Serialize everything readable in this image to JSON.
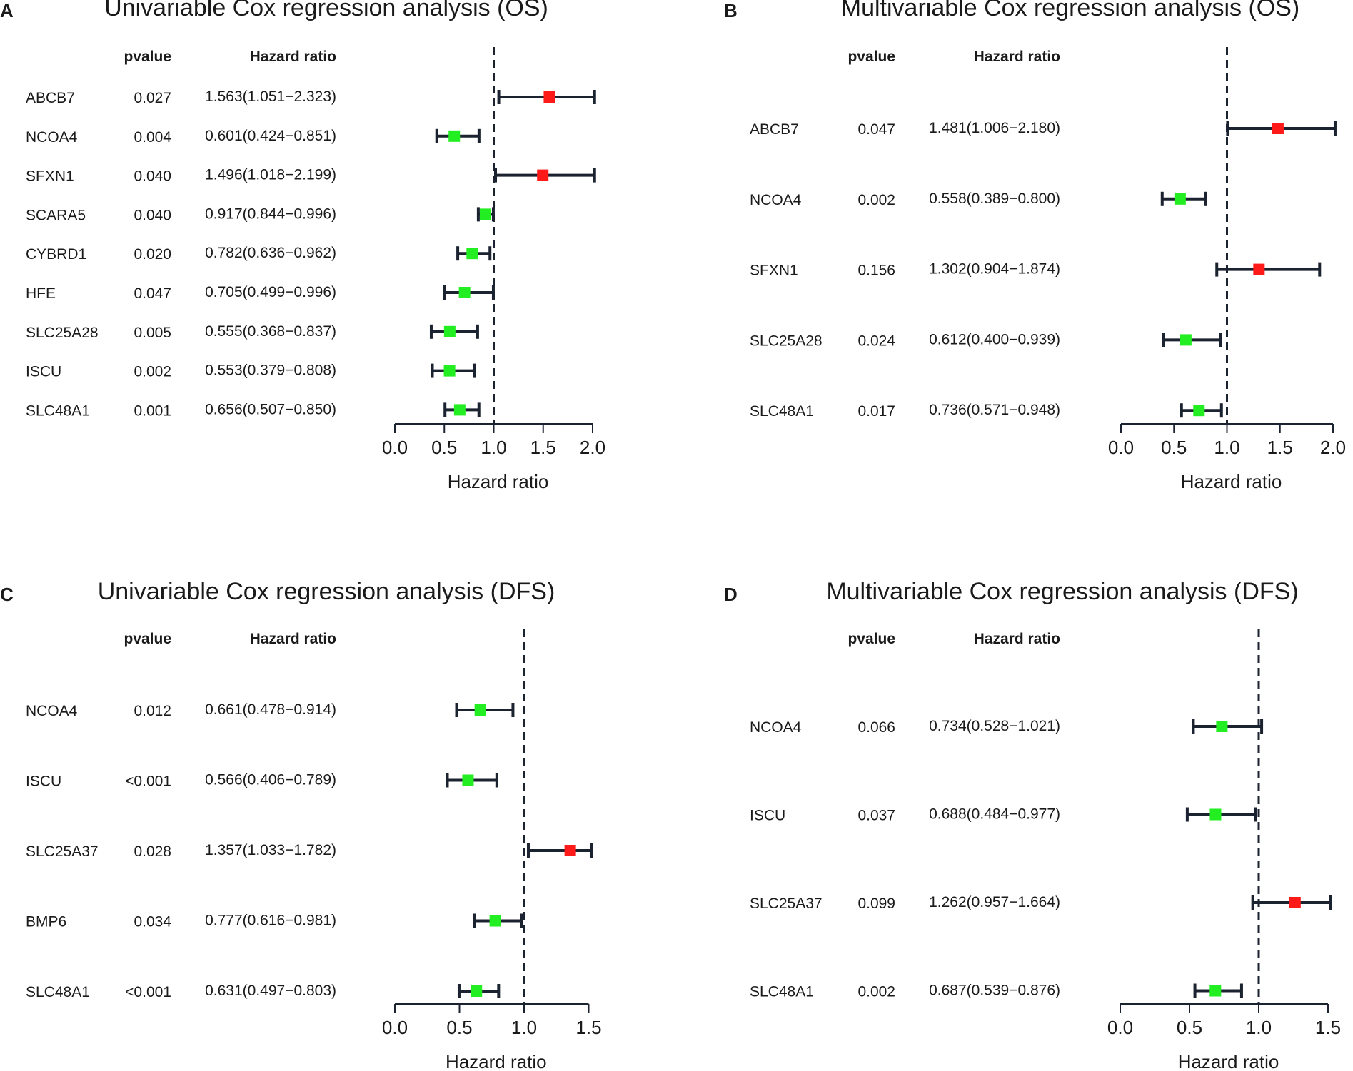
{
  "colors": {
    "up": "#ff1a1a",
    "down": "#22ee22",
    "line": "#1c2330",
    "text": "#1a1a1a"
  },
  "chart_data": [
    {
      "type": "forest",
      "panel": "A",
      "title": "Univariable Cox regression analysis (OS)",
      "col_pvalue": "pvalue",
      "col_hr": "Hazard ratio",
      "xlabel": "Hazard ratio",
      "xlim": [
        0,
        2.0
      ],
      "ticks": [
        "0.0",
        "0.5",
        "1.0",
        "1.5",
        "2.0"
      ],
      "ref": 1.0,
      "rows": [
        {
          "gene": "ABCB7",
          "p": "0.027",
          "label": "1.563(1.051−2.323)",
          "hr": 1.563,
          "lo": 1.051,
          "hi": 2.323
        },
        {
          "gene": "NCOA4",
          "p": "0.004",
          "label": "0.601(0.424−0.851)",
          "hr": 0.601,
          "lo": 0.424,
          "hi": 0.851
        },
        {
          "gene": "SFXN1",
          "p": "0.040",
          "label": "1.496(1.018−2.199)",
          "hr": 1.496,
          "lo": 1.018,
          "hi": 2.199
        },
        {
          "gene": "SCARA5",
          "p": "0.040",
          "label": "0.917(0.844−0.996)",
          "hr": 0.917,
          "lo": 0.844,
          "hi": 0.996
        },
        {
          "gene": "CYBRD1",
          "p": "0.020",
          "label": "0.782(0.636−0.962)",
          "hr": 0.782,
          "lo": 0.636,
          "hi": 0.962
        },
        {
          "gene": "HFE",
          "p": "0.047",
          "label": "0.705(0.499−0.996)",
          "hr": 0.705,
          "lo": 0.499,
          "hi": 0.996
        },
        {
          "gene": "SLC25A28",
          "p": "0.005",
          "label": "0.555(0.368−0.837)",
          "hr": 0.555,
          "lo": 0.368,
          "hi": 0.837
        },
        {
          "gene": "ISCU",
          "p": "0.002",
          "label": "0.553(0.379−0.808)",
          "hr": 0.553,
          "lo": 0.379,
          "hi": 0.808
        },
        {
          "gene": "SLC48A1",
          "p": "0.001",
          "label": "0.656(0.507−0.850)",
          "hr": 0.656,
          "lo": 0.507,
          "hi": 0.85
        }
      ]
    },
    {
      "type": "forest",
      "panel": "B",
      "title": "Multivariable Cox regression analysis (OS)",
      "col_pvalue": "pvalue",
      "col_hr": "Hazard ratio",
      "xlabel": "Hazard ratio",
      "xlim": [
        0,
        2.0
      ],
      "ticks": [
        "0.0",
        "0.5",
        "1.0",
        "1.5",
        "2.0"
      ],
      "ref": 1.0,
      "rows": [
        {
          "gene": "ABCB7",
          "p": "0.047",
          "label": "1.481(1.006−2.180)",
          "hr": 1.481,
          "lo": 1.006,
          "hi": 2.18
        },
        {
          "gene": "NCOA4",
          "p": "0.002",
          "label": "0.558(0.389−0.800)",
          "hr": 0.558,
          "lo": 0.389,
          "hi": 0.8
        },
        {
          "gene": "SFXN1",
          "p": "0.156",
          "label": "1.302(0.904−1.874)",
          "hr": 1.302,
          "lo": 0.904,
          "hi": 1.874
        },
        {
          "gene": "SLC25A28",
          "p": "0.024",
          "label": "0.612(0.400−0.939)",
          "hr": 0.612,
          "lo": 0.4,
          "hi": 0.939
        },
        {
          "gene": "SLC48A1",
          "p": "0.017",
          "label": "0.736(0.571−0.948)",
          "hr": 0.736,
          "lo": 0.571,
          "hi": 0.948
        }
      ]
    },
    {
      "type": "forest",
      "panel": "C",
      "title": "Univariable Cox regression analysis (DFS)",
      "col_pvalue": "pvalue",
      "col_hr": "Hazard ratio",
      "xlabel": "Hazard ratio",
      "xlim": [
        0,
        1.5
      ],
      "ticks": [
        "0.0",
        "0.5",
        "1.0",
        "1.5"
      ],
      "ref": 1.0,
      "rows": [
        {
          "gene": "NCOA4",
          "p": "0.012",
          "label": "0.661(0.478−0.914)",
          "hr": 0.661,
          "lo": 0.478,
          "hi": 0.914
        },
        {
          "gene": "ISCU",
          "p": "<0.001",
          "label": "0.566(0.406−0.789)",
          "hr": 0.566,
          "lo": 0.406,
          "hi": 0.789
        },
        {
          "gene": "SLC25A37",
          "p": "0.028",
          "label": "1.357(1.033−1.782)",
          "hr": 1.357,
          "lo": 1.033,
          "hi": 1.782
        },
        {
          "gene": "BMP6",
          "p": "0.034",
          "label": "0.777(0.616−0.981)",
          "hr": 0.777,
          "lo": 0.616,
          "hi": 0.981
        },
        {
          "gene": "SLC48A1",
          "p": "<0.001",
          "label": "0.631(0.497−0.803)",
          "hr": 0.631,
          "lo": 0.497,
          "hi": 0.803
        }
      ]
    },
    {
      "type": "forest",
      "panel": "D",
      "title": "Multivariable Cox regression analysis (DFS)",
      "col_pvalue": "pvalue",
      "col_hr": "Hazard ratio",
      "xlabel": "Hazard ratio",
      "xlim": [
        0,
        1.5
      ],
      "ticks": [
        "0.0",
        "0.5",
        "1.0",
        "1.5"
      ],
      "ref": 1.0,
      "rows": [
        {
          "gene": "NCOA4",
          "p": "0.066",
          "label": "0.734(0.528−1.021)",
          "hr": 0.734,
          "lo": 0.528,
          "hi": 1.021
        },
        {
          "gene": "ISCU",
          "p": "0.037",
          "label": "0.688(0.484−0.977)",
          "hr": 0.688,
          "lo": 0.484,
          "hi": 0.977
        },
        {
          "gene": "SLC25A37",
          "p": "0.099",
          "label": "1.262(0.957−1.664)",
          "hr": 1.262,
          "lo": 0.957,
          "hi": 1.664
        },
        {
          "gene": "SLC48A1",
          "p": "0.002",
          "label": "0.687(0.539−0.876)",
          "hr": 0.687,
          "lo": 0.539,
          "hi": 0.876
        }
      ]
    }
  ]
}
